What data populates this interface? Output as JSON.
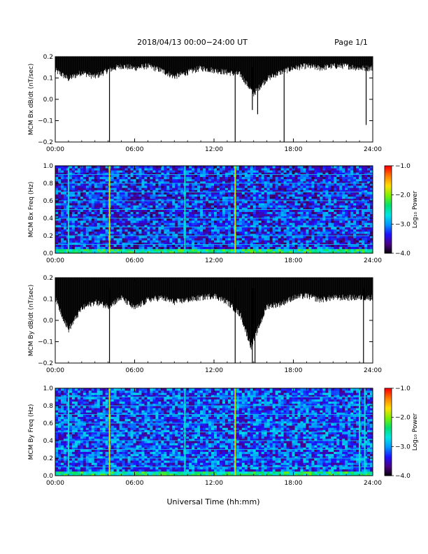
{
  "header": {
    "title": "2018/04/13  00:00−24:00 UT",
    "page": "Page 1/1"
  },
  "footer": {
    "xlabel": "Universal Time (hh:mm)"
  },
  "colors": {
    "trace": "#000000",
    "cmap": [
      "#000000",
      "#4b0082",
      "#1e10ff",
      "#0096ff",
      "#00e5e5",
      "#00e070",
      "#7cf000",
      "#ffe000",
      "#ff8000",
      "#ff0000"
    ]
  },
  "chart_data": [
    {
      "type": "line",
      "ylabel": "MCM Bx dB/dt (nT/sec)",
      "x_unit": "hours UT",
      "xlim": [
        0,
        24
      ],
      "ylim": [
        -0.2,
        0.2
      ],
      "xticks": [
        "00:00",
        "06:00",
        "12:00",
        "18:00",
        "24:00"
      ],
      "yticks": [
        "−0.2",
        "−0.1",
        "0.0",
        "0.1",
        "0.2"
      ],
      "ytick_values": [
        -0.2,
        -0.1,
        0.0,
        0.1,
        0.2
      ],
      "envelope_top": 0.2,
      "envelope_low": [
        [
          0,
          0.13
        ],
        [
          1,
          0.09
        ],
        [
          2,
          0.12
        ],
        [
          3,
          0.1
        ],
        [
          4,
          0.13
        ],
        [
          5,
          0.15
        ],
        [
          6,
          0.14
        ],
        [
          7,
          0.15
        ],
        [
          8,
          0.13
        ],
        [
          9,
          0.1
        ],
        [
          10,
          0.12
        ],
        [
          11,
          0.14
        ],
        [
          12,
          0.13
        ],
        [
          13,
          0.12
        ],
        [
          14,
          0.11
        ],
        [
          15,
          0.02
        ],
        [
          16,
          0.09
        ],
        [
          17,
          0.12
        ],
        [
          18,
          0.14
        ],
        [
          19,
          0.15
        ],
        [
          20,
          0.14
        ],
        [
          21,
          0.15
        ],
        [
          22,
          0.15
        ],
        [
          23,
          0.14
        ],
        [
          24,
          0.14
        ]
      ],
      "spikes": [
        [
          4.1,
          -0.2
        ],
        [
          13.6,
          -0.2
        ],
        [
          14.9,
          -0.05
        ],
        [
          15.3,
          -0.07
        ],
        [
          17.3,
          -0.2
        ],
        [
          23.5,
          -0.12
        ]
      ]
    },
    {
      "type": "heatmap",
      "ylabel": "MCM Bx Freq (Hz)",
      "x_unit": "hours UT",
      "xlim": [
        0,
        24
      ],
      "ylim": [
        0.0,
        1.0
      ],
      "xticks": [
        "00:00",
        "06:00",
        "12:00",
        "18:00",
        "24:00"
      ],
      "yticks": [
        "0.0",
        "0.2",
        "0.4",
        "0.6",
        "0.8",
        "1.0"
      ],
      "ytick_values": [
        0.0,
        0.2,
        0.4,
        0.6,
        0.8,
        1.0
      ],
      "colorbar": {
        "label": "Log₁₀ Power",
        "range": [
          -4.0,
          -1.0
        ],
        "ticks": [
          "−1.0",
          "−2.0",
          "−3.0",
          "−4.0"
        ],
        "tick_values": [
          -1.0,
          -2.0,
          -3.0,
          -4.0
        ]
      },
      "harmonic_lines_hz": [
        0.1,
        0.2,
        0.3,
        0.4,
        0.5,
        0.6,
        0.7,
        0.8,
        0.9
      ],
      "vertical_events_hours": [
        1.0,
        4.1,
        9.8,
        13.6
      ],
      "background_log_power": -3.3,
      "low_freq_log_power": -2.5
    },
    {
      "type": "line",
      "ylabel": "MCM By dB/dt (nT/sec)",
      "x_unit": "hours UT",
      "xlim": [
        0,
        24
      ],
      "ylim": [
        -0.2,
        0.2
      ],
      "xticks": [
        "00:00",
        "06:00",
        "12:00",
        "18:00",
        "24:00"
      ],
      "yticks": [
        "−0.2",
        "−0.1",
        "0.0",
        "0.1",
        "0.2"
      ],
      "ytick_values": [
        -0.2,
        -0.1,
        0.0,
        0.1,
        0.2
      ],
      "envelope_top": 0.2,
      "envelope_low": [
        [
          0,
          0.1
        ],
        [
          0.5,
          0.02
        ],
        [
          1,
          -0.05
        ],
        [
          2,
          0.05
        ],
        [
          3,
          0.08
        ],
        [
          4,
          0.06
        ],
        [
          5,
          0.1
        ],
        [
          6,
          0.05
        ],
        [
          7,
          0.09
        ],
        [
          8,
          0.1
        ],
        [
          9,
          0.08
        ],
        [
          10,
          0.09
        ],
        [
          11,
          0.1
        ],
        [
          12,
          0.11
        ],
        [
          13,
          0.08
        ],
        [
          14,
          0.02
        ],
        [
          14.8,
          -0.13
        ],
        [
          15.5,
          -0.02
        ],
        [
          16,
          0.06
        ],
        [
          17,
          0.07
        ],
        [
          18,
          0.1
        ],
        [
          19,
          0.11
        ],
        [
          20,
          0.09
        ],
        [
          21,
          0.1
        ],
        [
          22,
          0.1
        ],
        [
          23,
          0.1
        ],
        [
          24,
          0.1
        ]
      ],
      "spikes": [
        [
          4.1,
          -0.2
        ],
        [
          13.6,
          -0.2
        ],
        [
          14.9,
          -0.2
        ],
        [
          15.1,
          -0.2
        ],
        [
          23.3,
          -0.2
        ]
      ]
    },
    {
      "type": "heatmap",
      "ylabel": "MCM By Freq (Hz)",
      "x_unit": "hours UT",
      "xlim": [
        0,
        24
      ],
      "ylim": [
        0.0,
        1.0
      ],
      "xticks": [
        "00:00",
        "06:00",
        "12:00",
        "18:00",
        "24:00"
      ],
      "yticks": [
        "0.0",
        "0.2",
        "0.4",
        "0.6",
        "0.8",
        "1.0"
      ],
      "ytick_values": [
        0.0,
        0.2,
        0.4,
        0.6,
        0.8,
        1.0
      ],
      "colorbar": {
        "label": "Log₁₀ Power",
        "range": [
          -4.0,
          -1.0
        ],
        "ticks": [
          "−1.0",
          "−2.0",
          "−3.0",
          "−4.0"
        ],
        "tick_values": [
          -1.0,
          -2.0,
          -3.0,
          -4.0
        ]
      },
      "harmonic_lines_hz": [
        0.1,
        0.2,
        0.3,
        0.4,
        0.5,
        0.6,
        0.7,
        0.8,
        0.9
      ],
      "vertical_events_hours": [
        1.0,
        4.1,
        9.8,
        13.6,
        23.0,
        23.4
      ],
      "background_log_power": -3.2,
      "low_freq_log_power": -2.5
    }
  ]
}
